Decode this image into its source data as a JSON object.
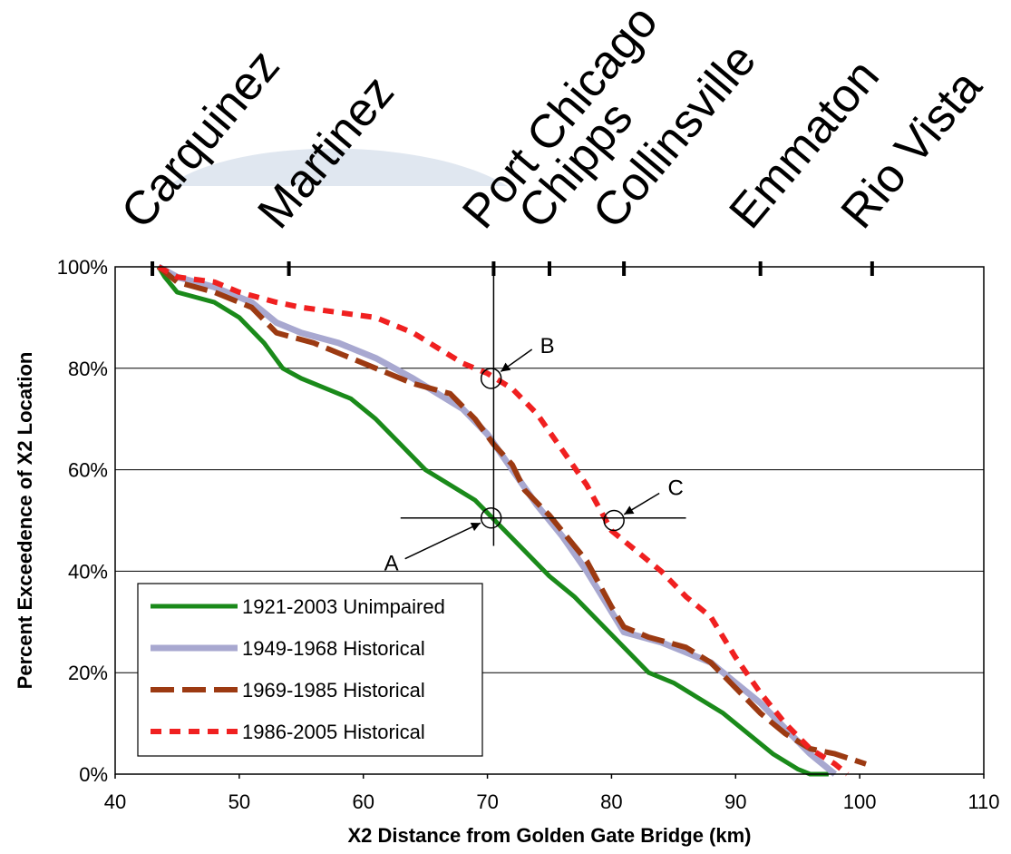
{
  "chart_data": {
    "type": "line",
    "xlabel": "X2 Distance from Golden Gate Bridge (km)",
    "ylabel": "Percent Exceedence of X2 Location",
    "xlim": [
      40,
      110
    ],
    "ylim": [
      0,
      100
    ],
    "x_ticks": [
      40,
      50,
      60,
      70,
      80,
      90,
      100,
      110
    ],
    "y_ticks": [
      0,
      20,
      40,
      60,
      80,
      100
    ],
    "y_tick_format": "percent",
    "grid": "horizontal",
    "legend_position": "bottom-left",
    "locations": [
      {
        "name": "Carquinez",
        "km": 43
      },
      {
        "name": "Martinez",
        "km": 54
      },
      {
        "name": "Port Chicago",
        "km": 70.5
      },
      {
        "name": "Chipps",
        "km": 75
      },
      {
        "name": "Collinsville",
        "km": 81
      },
      {
        "name": "Emmaton",
        "km": 92
      },
      {
        "name": "Rio Vista",
        "km": 101
      }
    ],
    "reference_lines": [
      {
        "orientation": "vertical",
        "x": 70.5,
        "y_range": [
          45,
          100
        ]
      },
      {
        "orientation": "horizontal",
        "y": 50.5,
        "x_range": [
          63,
          86
        ]
      }
    ],
    "annotations": [
      {
        "label": "A",
        "x": 70.3,
        "y": 50.5
      },
      {
        "label": "B",
        "x": 70.3,
        "y": 78
      },
      {
        "label": "C",
        "x": 80.2,
        "y": 50
      }
    ],
    "series": [
      {
        "name": "1921-2003 Unimpaired",
        "color": "#1a8a1a",
        "style": "solid",
        "points": [
          [
            43.5,
            100
          ],
          [
            44,
            98
          ],
          [
            45,
            95
          ],
          [
            48,
            93
          ],
          [
            50,
            90
          ],
          [
            52,
            85
          ],
          [
            53.5,
            80
          ],
          [
            55,
            78
          ],
          [
            57,
            76
          ],
          [
            59,
            74
          ],
          [
            61,
            70
          ],
          [
            63,
            65
          ],
          [
            65,
            60
          ],
          [
            67,
            57
          ],
          [
            69,
            54
          ],
          [
            71,
            49
          ],
          [
            73,
            44
          ],
          [
            75,
            39
          ],
          [
            77,
            35
          ],
          [
            79,
            30
          ],
          [
            81,
            25
          ],
          [
            83,
            20
          ],
          [
            85,
            18
          ],
          [
            87,
            15
          ],
          [
            89,
            12
          ],
          [
            91,
            8
          ],
          [
            93,
            4
          ],
          [
            95,
            1
          ],
          [
            96,
            0
          ],
          [
            97.5,
            0
          ]
        ]
      },
      {
        "name": "1949-1968 Historical",
        "color": "#a8a8d0",
        "style": "solid",
        "points": [
          [
            43.5,
            100
          ],
          [
            45,
            98
          ],
          [
            48,
            96
          ],
          [
            51,
            93
          ],
          [
            53,
            89
          ],
          [
            55,
            87
          ],
          [
            58,
            85
          ],
          [
            61,
            82
          ],
          [
            64,
            78
          ],
          [
            66,
            75
          ],
          [
            68,
            72
          ],
          [
            70,
            67
          ],
          [
            72,
            60
          ],
          [
            74,
            53
          ],
          [
            76,
            47
          ],
          [
            78,
            40
          ],
          [
            80,
            32
          ],
          [
            81,
            28
          ],
          [
            84,
            26
          ],
          [
            86,
            24
          ],
          [
            88,
            22
          ],
          [
            90,
            18
          ],
          [
            92,
            14
          ],
          [
            94,
            9
          ],
          [
            96,
            4
          ],
          [
            97,
            2
          ],
          [
            98,
            0
          ]
        ]
      },
      {
        "name": "1969-1985 Historical",
        "color": "#9c3a12",
        "style": "dashed",
        "points": [
          [
            43.5,
            100
          ],
          [
            45,
            97
          ],
          [
            48,
            95
          ],
          [
            50,
            93
          ],
          [
            51,
            92
          ],
          [
            53,
            87
          ],
          [
            56,
            85
          ],
          [
            59,
            82
          ],
          [
            62,
            79
          ],
          [
            64,
            77
          ],
          [
            67,
            75
          ],
          [
            69,
            70
          ],
          [
            70.5,
            65
          ],
          [
            72,
            61
          ],
          [
            73,
            56
          ],
          [
            75,
            51
          ],
          [
            76,
            48
          ],
          [
            78,
            42
          ],
          [
            80,
            33
          ],
          [
            81,
            29
          ],
          [
            83,
            27
          ],
          [
            86,
            25
          ],
          [
            88,
            22
          ],
          [
            90,
            17
          ],
          [
            92,
            12
          ],
          [
            94,
            8
          ],
          [
            96,
            5
          ],
          [
            98,
            4
          ],
          [
            100.5,
            2
          ]
        ]
      },
      {
        "name": "1986-2005 Historical",
        "color": "#f02020",
        "style": "dotted",
        "points": [
          [
            43.5,
            100
          ],
          [
            45,
            98
          ],
          [
            48,
            97
          ],
          [
            50,
            95
          ],
          [
            53,
            93
          ],
          [
            55,
            92
          ],
          [
            58,
            91
          ],
          [
            61,
            90
          ],
          [
            64,
            87
          ],
          [
            66,
            84
          ],
          [
            68,
            81
          ],
          [
            70,
            79
          ],
          [
            72,
            76
          ],
          [
            74,
            71
          ],
          [
            76,
            64
          ],
          [
            78,
            57
          ],
          [
            80,
            48
          ],
          [
            82,
            44
          ],
          [
            84,
            40
          ],
          [
            86,
            35
          ],
          [
            88,
            31
          ],
          [
            89,
            27
          ],
          [
            90,
            23
          ],
          [
            92,
            16
          ],
          [
            94,
            10
          ],
          [
            96,
            5
          ],
          [
            98,
            2
          ],
          [
            99,
            0
          ]
        ]
      }
    ]
  }
}
